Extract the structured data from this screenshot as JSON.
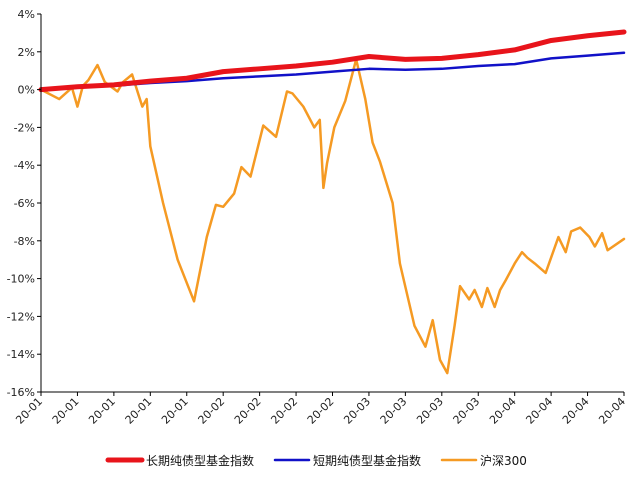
{
  "chart_data": {
    "type": "line",
    "xlabel": "",
    "ylabel": "",
    "x_tick_labels": [
      "20-01",
      "20-01",
      "20-01",
      "20-01",
      "20-01",
      "20-02",
      "20-02",
      "20-02",
      "20-02",
      "20-03",
      "20-03",
      "20-03",
      "20-03",
      "20-04",
      "20-04",
      "20-04",
      "20-04"
    ],
    "ylim": [
      -16,
      4
    ],
    "y_ticks": [
      4,
      2,
      0,
      -2,
      -4,
      -6,
      -8,
      -10,
      -12,
      -14,
      -16
    ],
    "y_tick_labels": [
      "4%",
      "2%",
      "0%",
      "-2%",
      "-4%",
      "-6%",
      "-8%",
      "-10%",
      "-12%",
      "-14%",
      "-16%"
    ],
    "grid": false,
    "legend_position": "bottom",
    "series": [
      {
        "name": "长期纯债型基金指数",
        "color": "#e8141b",
        "x": [
          0,
          1,
          2,
          3,
          4,
          5,
          6,
          7,
          8,
          9,
          10,
          11,
          12,
          13,
          14,
          15,
          16
        ],
        "values": [
          0,
          0.15,
          0.25,
          0.45,
          0.6,
          0.95,
          1.1,
          1.25,
          1.45,
          1.75,
          1.6,
          1.65,
          1.85,
          2.1,
          2.6,
          2.85,
          3.05
        ]
      },
      {
        "name": "短期纯债型基金指数",
        "color": "#1111c8",
        "x": [
          0,
          1,
          2,
          3,
          4,
          5,
          6,
          7,
          8,
          9,
          10,
          11,
          12,
          13,
          14,
          15,
          16
        ],
        "values": [
          0,
          0.12,
          0.2,
          0.35,
          0.45,
          0.6,
          0.7,
          0.8,
          0.95,
          1.1,
          1.05,
          1.1,
          1.25,
          1.35,
          1.65,
          1.8,
          1.95
        ]
      },
      {
        "name": "沪深300",
        "color": "#f59a23",
        "x": [
          0,
          0.5,
          0.85,
          1.0,
          1.15,
          1.3,
          1.55,
          1.75,
          2.1,
          2.25,
          2.5,
          2.78,
          2.9,
          3.0,
          3.35,
          3.75,
          4.2,
          4.55,
          4.8,
          5.0,
          5.3,
          5.5,
          5.75,
          6.1,
          6.45,
          6.75,
          6.9,
          7.2,
          7.5,
          7.65,
          7.75,
          7.85,
          8.05,
          8.35,
          8.65,
          8.9,
          9.1,
          9.3,
          9.65,
          9.85,
          10.25,
          10.55,
          10.75,
          10.95,
          11.15,
          11.35,
          11.5,
          11.75,
          11.9,
          12.1,
          12.25,
          12.45,
          12.6,
          12.75,
          13.0,
          13.2,
          13.35,
          13.55,
          13.85,
          14.2,
          14.4,
          14.55,
          14.8,
          15.05,
          15.2,
          15.4,
          15.55,
          16.0
        ],
        "values": [
          0,
          -0.5,
          0.1,
          -0.9,
          0.2,
          0.5,
          1.3,
          0.4,
          -0.1,
          0.4,
          0.8,
          -0.9,
          -0.5,
          -3.0,
          -6.0,
          -9.0,
          -11.2,
          -7.8,
          -6.1,
          -6.2,
          -5.5,
          -4.1,
          -4.6,
          -1.9,
          -2.5,
          -0.1,
          -0.2,
          -0.9,
          -2.0,
          -1.6,
          -5.2,
          -3.9,
          -2.0,
          -0.6,
          1.6,
          -0.5,
          -2.8,
          -3.8,
          -6.0,
          -9.2,
          -12.5,
          -13.6,
          -12.2,
          -14.3,
          -15.0,
          -12.5,
          -10.4,
          -11.1,
          -10.6,
          -11.5,
          -10.5,
          -11.5,
          -10.6,
          -10.1,
          -9.2,
          -8.6,
          -8.9,
          -9.2,
          -9.7,
          -7.8,
          -8.6,
          -7.5,
          -7.3,
          -7.8,
          -8.3,
          -7.6,
          -8.5,
          -7.9
        ]
      }
    ]
  }
}
